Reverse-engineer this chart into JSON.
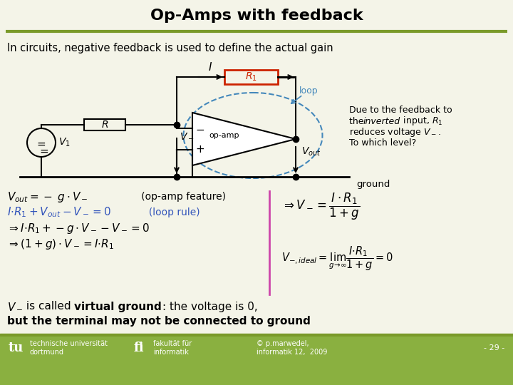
{
  "title": "Op-Amps with feedback",
  "subtitle": "In circuits, negative feedback is used to define the actual gain",
  "bg_color": "#f4f4e8",
  "title_color": "#000000",
  "olive_green": "#7a9a2a",
  "blue_text": "#3355bb",
  "red_box": "#cc2200",
  "loop_blue": "#4488bb",
  "pink_line": "#cc44aa",
  "footer_bg": "#8ab040",
  "footer_text": "#ffffff",
  "footer_left1": "technische universität",
  "footer_left2": "dortmund",
  "footer_mid1": "fakultät für",
  "footer_mid2": "informatik",
  "footer_right1": "© p.marwedel,",
  "footer_right2": "informatik 12,  2009",
  "footer_page": "- 29 -"
}
